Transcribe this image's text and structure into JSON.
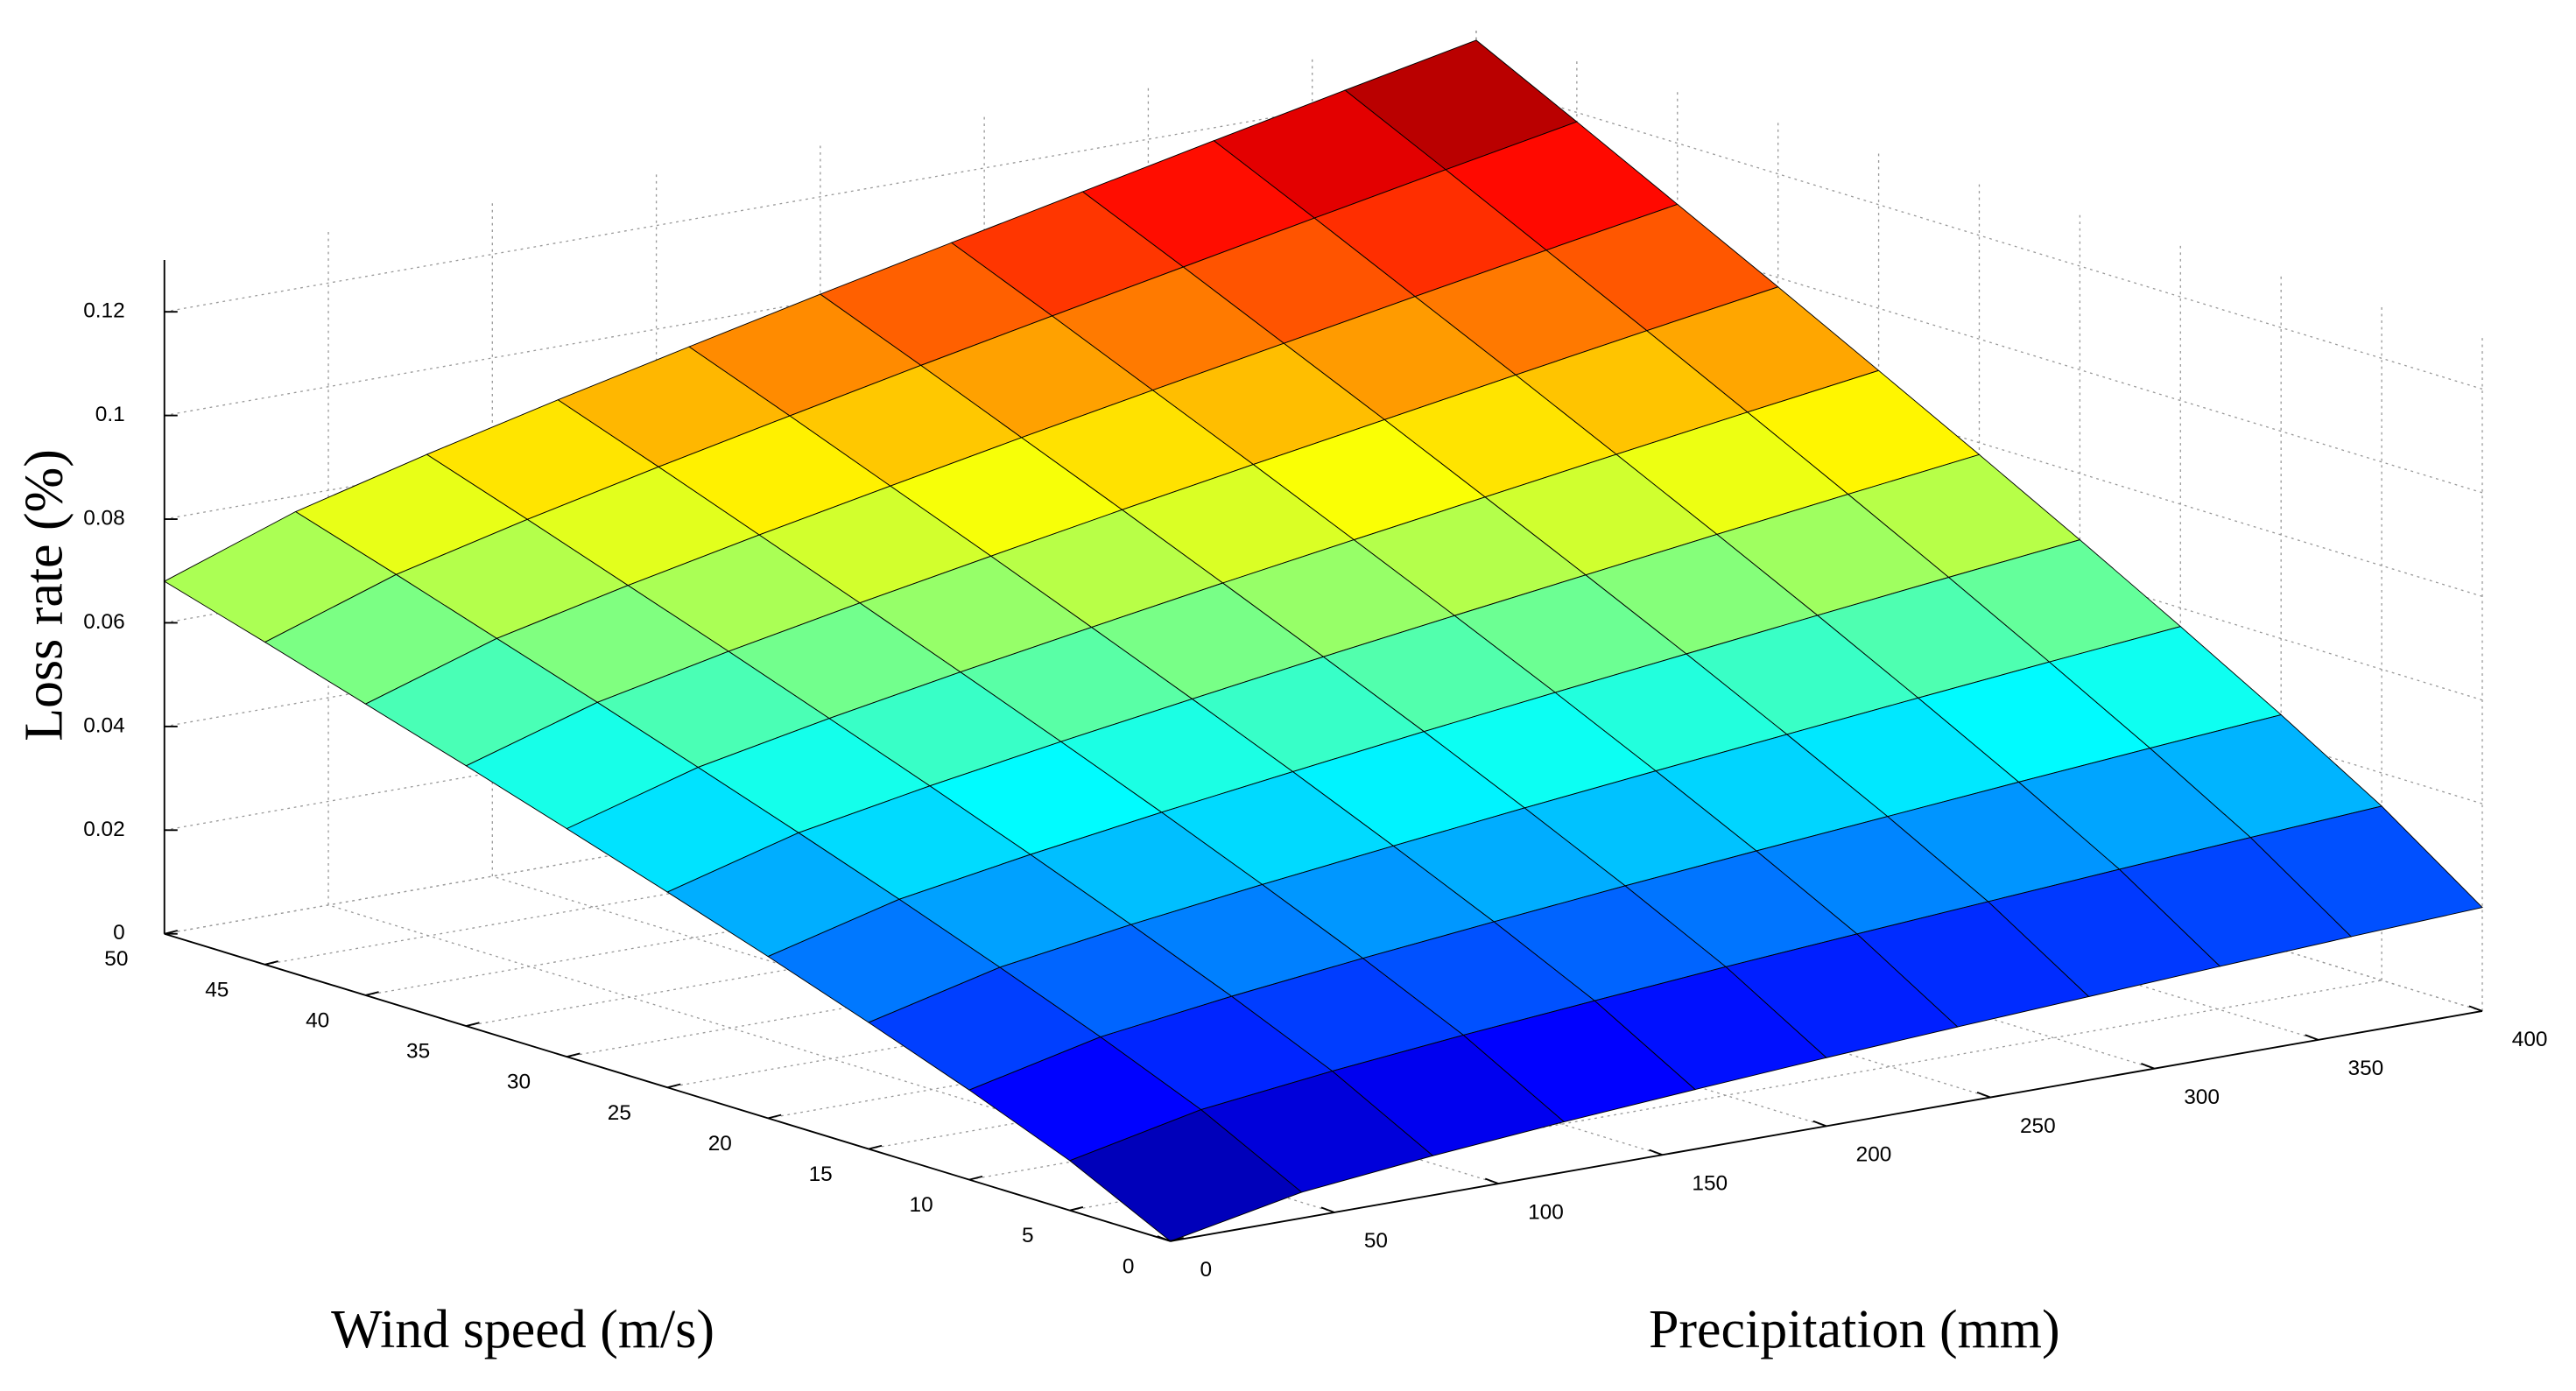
{
  "chart_data": {
    "type": "surface",
    "xlabel": "Precipitation (mm)",
    "ylabel": "Wind speed (m/s)",
    "zlabel": "Loss rate (%)",
    "x": [
      0,
      40,
      80,
      120,
      160,
      200,
      240,
      280,
      320,
      360,
      400
    ],
    "y": [
      0,
      5,
      10,
      15,
      20,
      25,
      30,
      35,
      40,
      45,
      50
    ],
    "z": [
      [
        0,
        0.005,
        0.0076,
        0.0097,
        0.0115,
        0.0132,
        0.0147,
        0.0161,
        0.0175,
        0.0188,
        0.02
      ],
      [
        0.0096,
        0.015,
        0.018,
        0.0205,
        0.0227,
        0.0248,
        0.0267,
        0.0285,
        0.0303,
        0.032,
        0.0336
      ],
      [
        0.0173,
        0.0231,
        0.0265,
        0.0294,
        0.032,
        0.0345,
        0.0368,
        0.039,
        0.0412,
        0.0433,
        0.0453
      ],
      [
        0.0244,
        0.0306,
        0.0344,
        0.0377,
        0.0407,
        0.0436,
        0.0463,
        0.0489,
        0.0515,
        0.054,
        0.0564
      ],
      [
        0.0312,
        0.0378,
        0.042,
        0.0457,
        0.0491,
        0.0524,
        0.0555,
        0.0585,
        0.0615,
        0.0644,
        0.0672
      ],
      [
        0.0377,
        0.0447,
        0.0493,
        0.0534,
        0.0572,
        0.0609,
        0.0644,
        0.0678,
        0.0712,
        0.0745,
        0.0777
      ],
      [
        0.044,
        0.0514,
        0.0564,
        0.0609,
        0.0651,
        0.0692,
        0.0731,
        0.0769,
        0.0807,
        0.0844,
        0.088
      ],
      [
        0.0502,
        0.058,
        0.0634,
        0.0683,
        0.0729,
        0.0774,
        0.0817,
        0.0859,
        0.0901,
        0.0942,
        0.0982
      ],
      [
        0.0562,
        0.0644,
        0.0702,
        0.0755,
        0.0805,
        0.0854,
        0.0901,
        0.0947,
        0.0993,
        0.1038,
        0.1082
      ],
      [
        0.0622,
        0.0708,
        0.077,
        0.0827,
        0.0881,
        0.0934,
        0.0985,
        0.1035,
        0.1085,
        0.1134,
        0.1182
      ],
      [
        0.068,
        0.077,
        0.0836,
        0.0897,
        0.0955,
        0.1012,
        0.1067,
        0.1121,
        0.1175,
        0.1228,
        0.128
      ]
    ],
    "xlim": [
      0,
      400
    ],
    "ylim": [
      0,
      50
    ],
    "zlim": [
      0,
      0.13
    ],
    "xticks": [
      0,
      50,
      100,
      150,
      200,
      250,
      300,
      350,
      400
    ],
    "yticks": [
      0,
      5,
      10,
      15,
      20,
      25,
      30,
      35,
      40,
      45,
      50
    ],
    "zticks": [
      0,
      0.02,
      0.04,
      0.06,
      0.08,
      0.1,
      0.12
    ],
    "grid": true,
    "colormap": "jet"
  }
}
